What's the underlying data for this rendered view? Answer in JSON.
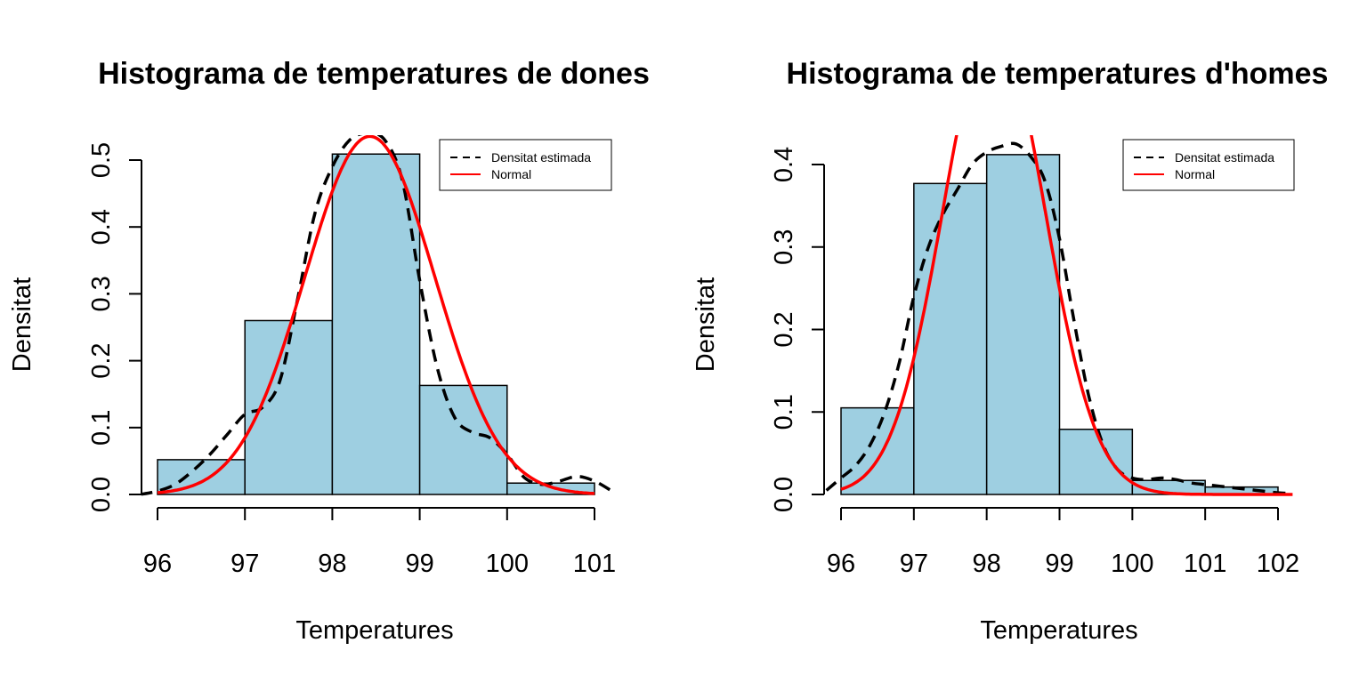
{
  "colors": {
    "bar_fill": "#9ecfe1",
    "bar_stroke": "#000000",
    "normal_curve": "#ff0000",
    "density_curve": "#000000"
  },
  "chart_data": [
    {
      "type": "bar",
      "subtype": "histogram-with-density",
      "title": "Histograma de temperatures de dones",
      "xlabel": "Temperatures",
      "ylabel": "Densitat",
      "xlim": [
        96,
        101
      ],
      "ylim": [
        0,
        0.5
      ],
      "x_ticks": [
        "96",
        "97",
        "98",
        "99",
        "100",
        "101"
      ],
      "y_ticks": [
        "0.0",
        "0.1",
        "0.2",
        "0.3",
        "0.4",
        "0.5"
      ],
      "bins": [
        [
          96,
          97
        ],
        [
          97,
          98
        ],
        [
          98,
          99
        ],
        [
          99,
          100
        ],
        [
          100,
          101
        ]
      ],
      "values": [
        0.052,
        0.26,
        0.509,
        0.163,
        0.017
      ],
      "legend": {
        "position": "top-right",
        "entries": [
          {
            "label": "Densitat estimada",
            "style": "dashed",
            "color": "#000000"
          },
          {
            "label": "Normal",
            "style": "solid",
            "color": "#ff0000"
          }
        ]
      },
      "series": [
        {
          "name": "Densitat estimada",
          "x": [
            95.8,
            96.0,
            96.2,
            96.4,
            96.6,
            96.8,
            97.0,
            97.2,
            97.4,
            97.6,
            97.8,
            98.0,
            98.2,
            98.4,
            98.6,
            98.8,
            99.0,
            99.2,
            99.4,
            99.6,
            99.8,
            100.0,
            100.2,
            100.4,
            100.6,
            100.8,
            101.0,
            101.2
          ],
          "y": [
            0.0,
            0.005,
            0.015,
            0.035,
            0.06,
            0.09,
            0.12,
            0.13,
            0.17,
            0.29,
            0.42,
            0.49,
            0.53,
            0.54,
            0.53,
            0.47,
            0.32,
            0.19,
            0.115,
            0.093,
            0.085,
            0.06,
            0.025,
            0.015,
            0.02,
            0.027,
            0.02,
            0.005
          ]
        },
        {
          "name": "Normal",
          "distribution": "normal",
          "mean": 98.43,
          "sd": 0.745,
          "x_range": [
            96,
            101
          ]
        }
      ]
    },
    {
      "type": "bar",
      "subtype": "histogram-with-density",
      "title": "Histograma de temperatures d'homes",
      "xlabel": "Temperatures",
      "ylabel": "Densitat",
      "xlim": [
        96,
        102
      ],
      "ylim": [
        0,
        0.4
      ],
      "x_ticks": [
        "96",
        "97",
        "98",
        "99",
        "100",
        "101",
        "102"
      ],
      "y_ticks": [
        "0.0",
        "0.1",
        "0.2",
        "0.3",
        "0.4"
      ],
      "bins": [
        [
          96,
          97
        ],
        [
          97,
          98
        ],
        [
          98,
          99
        ],
        [
          99,
          100
        ],
        [
          100,
          101
        ],
        [
          101,
          102
        ]
      ],
      "values": [
        0.105,
        0.377,
        0.412,
        0.079,
        0.017,
        0.009
      ],
      "legend": {
        "position": "top-right",
        "entries": [
          {
            "label": "Densitat estimada",
            "style": "dashed",
            "color": "#000000"
          },
          {
            "label": "Normal",
            "style": "solid",
            "color": "#ff0000"
          }
        ]
      },
      "series": [
        {
          "name": "Densitat estimada",
          "x": [
            95.8,
            96.0,
            96.2,
            96.4,
            96.6,
            96.8,
            97.0,
            97.2,
            97.4,
            97.6,
            97.8,
            98.0,
            98.2,
            98.4,
            98.6,
            98.8,
            99.0,
            99.2,
            99.4,
            99.6,
            99.8,
            100.0,
            100.2,
            100.4,
            100.6,
            100.8,
            101.0,
            101.2,
            101.4,
            101.6,
            101.8,
            102.0,
            102.2
          ],
          "y": [
            0.005,
            0.02,
            0.035,
            0.06,
            0.1,
            0.16,
            0.24,
            0.3,
            0.34,
            0.37,
            0.4,
            0.415,
            0.422,
            0.425,
            0.41,
            0.38,
            0.31,
            0.21,
            0.12,
            0.06,
            0.03,
            0.02,
            0.018,
            0.02,
            0.018,
            0.014,
            0.012,
            0.01,
            0.008,
            0.006,
            0.004,
            0.002,
            0.001
          ]
        },
        {
          "name": "Normal",
          "distribution": "normal",
          "mean": 98.1,
          "sd": 0.7,
          "x_range": [
            96,
            102.2
          ]
        }
      ]
    }
  ]
}
